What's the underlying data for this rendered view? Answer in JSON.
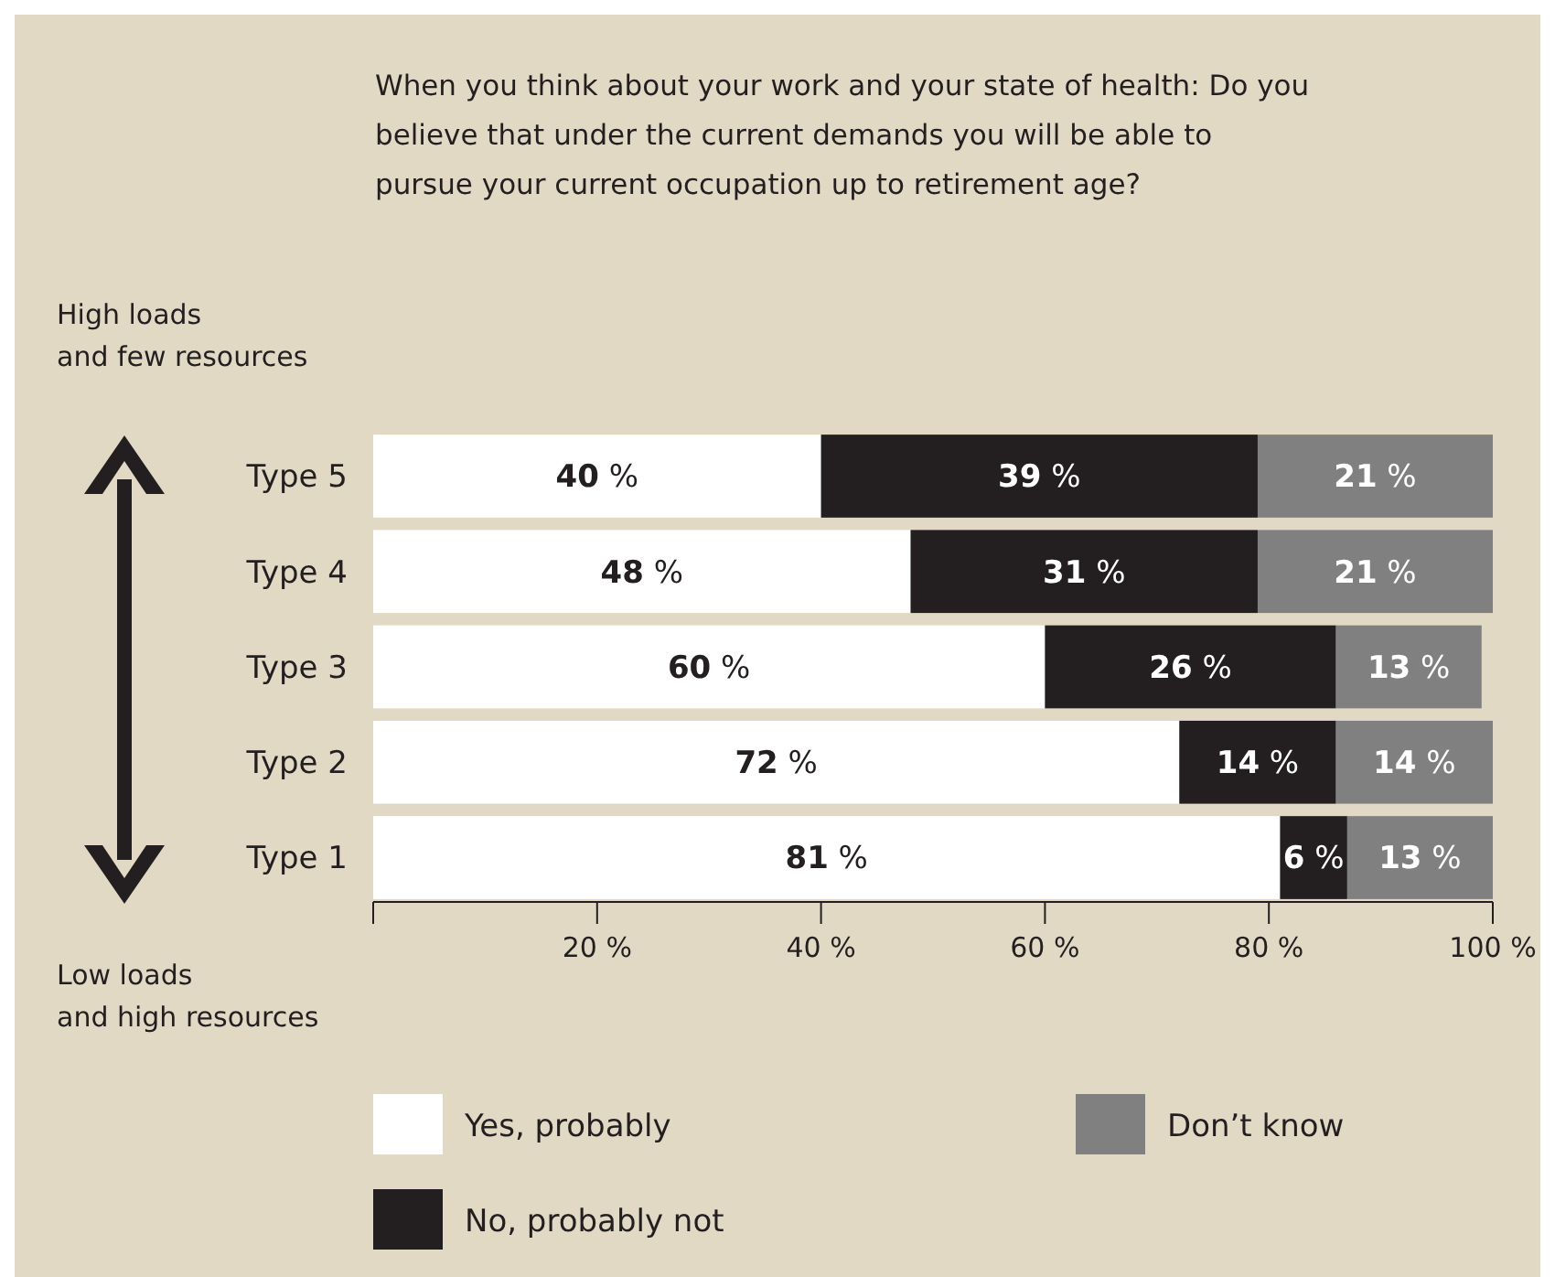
{
  "chart_data": {
    "type": "bar",
    "orientation": "horizontal",
    "stacked": true,
    "title": "When you think about your work and your state of health: Do you believe that under the current demands you will be able to pursue your current occupation up to retirement age?",
    "categories": [
      "Type 5",
      "Type 4",
      "Type 3",
      "Type 2",
      "Type 1"
    ],
    "series": [
      {
        "name": "Yes, probably",
        "color": "#ffffff",
        "values": [
          40,
          48,
          60,
          72,
          81
        ],
        "value_labels": [
          "40 %",
          "48 %",
          "60 %",
          "72 %",
          "81 %"
        ]
      },
      {
        "name": "No, probably not",
        "color": "#231f20",
        "values": [
          39,
          31,
          26,
          14,
          6
        ],
        "value_labels": [
          "39 %",
          "31 %",
          "26 %",
          "14 %",
          "6 %"
        ]
      },
      {
        "name": "Don’t know",
        "color": "#808080",
        "values": [
          21,
          21,
          13,
          14,
          13
        ],
        "value_labels": [
          "21 %",
          "21 %",
          "13 %",
          "14 %",
          "13 %"
        ]
      }
    ],
    "xlim": [
      0,
      100
    ],
    "xticks": [
      {
        "value": 0,
        "label": null
      },
      {
        "value": 20,
        "label": "20 %"
      },
      {
        "value": 40,
        "label": "40 %"
      },
      {
        "value": 60,
        "label": "60 %"
      },
      {
        "value": 80,
        "label": "80 %"
      },
      {
        "value": 100,
        "label": "100 %"
      }
    ],
    "annotations": [
      "High loads\nand few resources",
      "Low loads\nand high resources"
    ],
    "legend": "bottom"
  }
}
